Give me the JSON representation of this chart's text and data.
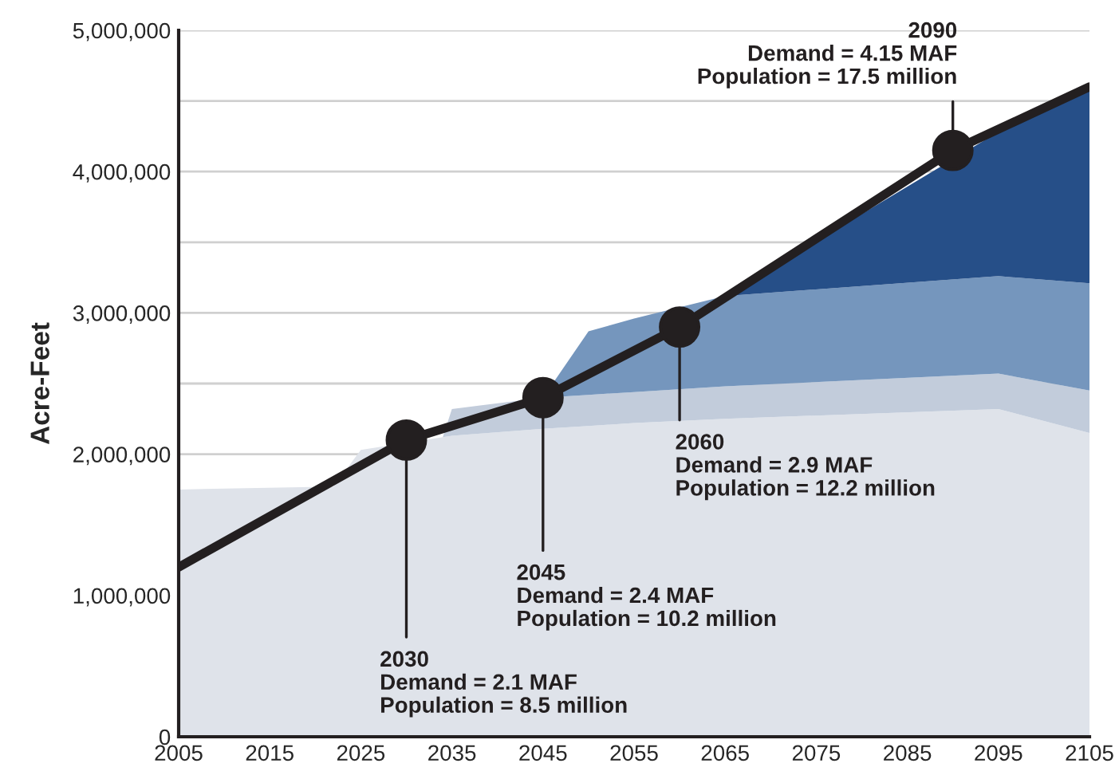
{
  "chart_data": {
    "type": "area",
    "stacked": true,
    "ylabel": "Acre-Feet",
    "xlim": [
      2005,
      2105
    ],
    "xticks": [
      2005,
      2015,
      2025,
      2035,
      2045,
      2055,
      2065,
      2075,
      2085,
      2095,
      2105
    ],
    "ylim": [
      0,
      5000000
    ],
    "yticks": [
      0,
      {
        "value": 1000000,
        "label": "1,000,000"
      },
      {
        "value": 2000000,
        "label": "2,000,000"
      },
      {
        "value": 2500000,
        "label": null
      },
      {
        "value": 3000000,
        "label": "3,000,000"
      },
      {
        "value": 3500000,
        "label": null
      },
      {
        "value": 4000000,
        "label": "4,000,000"
      },
      {
        "value": 4500000,
        "label": null
      },
      {
        "value": 5000000,
        "label": "5,000,000"
      }
    ],
    "grid": "y",
    "legend": false,
    "series": [
      {
        "color": "#dfe3ea",
        "x": [
          2005,
          2022,
          2025,
          2034,
          2035,
          2045,
          2050,
          2055,
          2065,
          2095,
          2105
        ],
        "values": [
          1750000,
          1770000,
          2030000,
          2120000,
          2130000,
          2180000,
          2200000,
          2220000,
          2250000,
          2320000,
          2150000
        ]
      },
      {
        "color": "#c2ccdb",
        "x": [
          2005,
          2022,
          2025,
          2034,
          2035,
          2045,
          2050,
          2055,
          2065,
          2095,
          2105
        ],
        "values": [
          0,
          0,
          0,
          0,
          190000,
          220000,
          220000,
          220000,
          230000,
          250000,
          300000
        ]
      },
      {
        "color": "#7596bd",
        "x": [
          2005,
          2022,
          2025,
          2034,
          2035,
          2045,
          2050,
          2055,
          2065,
          2095,
          2105
        ],
        "values": [
          0,
          0,
          0,
          0,
          0,
          0,
          450000,
          520000,
          640000,
          690000,
          760000
        ]
      },
      {
        "color": "#264f88",
        "x": [
          2005,
          2022,
          2025,
          2034,
          2035,
          2045,
          2050,
          2055,
          2065,
          2095,
          2105
        ],
        "values": [
          0,
          0,
          0,
          0,
          0,
          0,
          0,
          0,
          0,
          1020000,
          1390000
        ]
      },
      {
        "type": "line",
        "color": "#231f20",
        "marker": "none",
        "x": [
          2005,
          2030,
          2045,
          2060,
          2090,
          2105
        ],
        "values": [
          1200000,
          2100000,
          2400000,
          2900000,
          4150000,
          4600000
        ]
      },
      {
        "type": "scatter",
        "color": "#231f20",
        "marker": "circle",
        "x": [
          2030,
          2045,
          2060,
          2090
        ],
        "values": [
          2100000,
          2400000,
          2900000,
          4150000
        ]
      }
    ],
    "annotations": [
      {
        "text": "2030\nDemand = 2.1 MAF\nPopulation = 8.5 million",
        "x": 2030,
        "y": 2100000
      },
      {
        "text": "2045\nDemand = 2.4 MAF\nPopulation = 10.2 million",
        "x": 2045,
        "y": 2400000
      },
      {
        "text": "2060\nDemand = 2.9 MAF\nPopulation = 12.2 million",
        "x": 2060,
        "y": 2900000
      },
      {
        "text": "2090\nDemand = 4.15 MAF\nPopulation = 17.5 million",
        "x": 2090,
        "y": 4150000
      }
    ]
  }
}
